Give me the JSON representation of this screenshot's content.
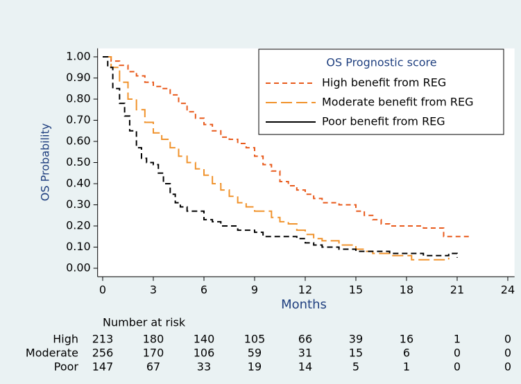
{
  "chart_data": {
    "type": "step",
    "ylabel": "OS Probability",
    "xlabel": "Months",
    "legend_title": "OS Prognostic score",
    "legend": "upper right",
    "xlim": [
      -0.3,
      24.4
    ],
    "ylim": [
      -0.04,
      1.04
    ],
    "xticks": [
      0,
      3,
      6,
      9,
      12,
      15,
      18,
      21,
      24
    ],
    "yticks": [
      {
        "value": 0,
        "label": "0.00"
      },
      {
        "value": 0.1,
        "label": "0.10"
      },
      {
        "value": 0.2,
        "label": "0.20"
      },
      {
        "value": 0.3,
        "label": "0.30"
      },
      {
        "value": 0.4,
        "label": "0.40"
      },
      {
        "value": 0.5,
        "label": "0.50"
      },
      {
        "value": 0.6,
        "label": "0.60"
      },
      {
        "value": 0.7,
        "label": "0.70"
      },
      {
        "value": 0.8,
        "label": "0.80"
      },
      {
        "value": 0.9,
        "label": "0.90"
      },
      {
        "value": 1,
        "label": "1.00"
      }
    ],
    "series": [
      {
        "name": "High benefit from REG",
        "color": "#e8591a",
        "x": [
          0,
          0.5,
          1,
          1.5,
          2,
          2.5,
          3,
          3.5,
          4,
          4.5,
          5,
          5.5,
          6,
          6.5,
          7,
          7.5,
          8,
          8.5,
          9,
          9.5,
          10,
          10.5,
          11,
          11.5,
          12,
          12.5,
          13,
          14,
          15,
          15.5,
          16,
          16.5,
          17,
          19,
          20.2,
          21.7
        ],
        "values": [
          1.0,
          0.98,
          0.96,
          0.93,
          0.91,
          0.88,
          0.86,
          0.85,
          0.82,
          0.78,
          0.74,
          0.71,
          0.68,
          0.65,
          0.62,
          0.61,
          0.59,
          0.57,
          0.53,
          0.49,
          0.46,
          0.41,
          0.39,
          0.37,
          0.35,
          0.33,
          0.31,
          0.3,
          0.27,
          0.25,
          0.23,
          0.21,
          0.2,
          0.19,
          0.15,
          0.16
        ]
      },
      {
        "name": "Moderate benefit from REG",
        "color": "#f0922b",
        "x": [
          0,
          0.5,
          1,
          1.5,
          2,
          2.5,
          3,
          3.5,
          4,
          4.5,
          5,
          5.5,
          6,
          6.5,
          7,
          7.5,
          8,
          8.5,
          9,
          10,
          10.5,
          11,
          11.5,
          12,
          12.5,
          13,
          14,
          15,
          15.5,
          16,
          17,
          18.3,
          20.5
        ],
        "values": [
          1.0,
          0.95,
          0.88,
          0.8,
          0.75,
          0.69,
          0.64,
          0.61,
          0.57,
          0.53,
          0.5,
          0.47,
          0.44,
          0.4,
          0.37,
          0.34,
          0.31,
          0.29,
          0.27,
          0.24,
          0.22,
          0.21,
          0.18,
          0.16,
          0.14,
          0.13,
          0.11,
          0.09,
          0.08,
          0.07,
          0.06,
          0.04,
          0.05
        ]
      },
      {
        "name": "Poor benefit from REG",
        "color": "#000000",
        "x": [
          0,
          0.3,
          0.6,
          1,
          1.3,
          1.6,
          2,
          2.3,
          2.6,
          3,
          3.3,
          3.6,
          4,
          4.3,
          4.6,
          5,
          6,
          6.5,
          7,
          8,
          9,
          9.5,
          11.5,
          12,
          12.5,
          13,
          14,
          15,
          17,
          19,
          20.5,
          21
        ],
        "values": [
          1.0,
          0.95,
          0.85,
          0.78,
          0.72,
          0.65,
          0.57,
          0.52,
          0.5,
          0.49,
          0.45,
          0.4,
          0.35,
          0.31,
          0.29,
          0.27,
          0.23,
          0.22,
          0.2,
          0.18,
          0.17,
          0.15,
          0.14,
          0.12,
          0.11,
          0.1,
          0.09,
          0.08,
          0.07,
          0.06,
          0.07,
          0.05
        ]
      }
    ],
    "risk_table": {
      "title": "Number at risk",
      "rows": [
        {
          "label": "High",
          "values": [
            213,
            180,
            140,
            105,
            66,
            39,
            16,
            1,
            0
          ]
        },
        {
          "label": "Moderate",
          "values": [
            256,
            170,
            106,
            59,
            31,
            15,
            6,
            0,
            0
          ]
        },
        {
          "label": "Poor",
          "values": [
            147,
            67,
            33,
            19,
            14,
            5,
            1,
            0,
            0
          ]
        }
      ]
    }
  }
}
